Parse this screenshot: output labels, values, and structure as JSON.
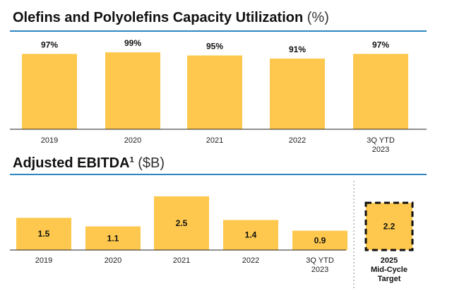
{
  "chart_data": [
    {
      "type": "bar",
      "title": "Olefins and Polyolefins Capacity Utilization",
      "unit_label": "(%)",
      "categories": [
        "2019",
        "2020",
        "2021",
        "2022",
        "3Q YTD 2023"
      ],
      "values": [
        97,
        99,
        95,
        91,
        97
      ],
      "value_labels": [
        "97%",
        "99%",
        "95%",
        "91%",
        "97%"
      ],
      "ylim": [
        0,
        100
      ],
      "colors": {
        "bar": "#FDC84D",
        "rule": "#2E86C1"
      }
    },
    {
      "type": "bar",
      "title": "Adjusted EBITDA",
      "title_superscript": "1",
      "unit_label": "($B)",
      "categories": [
        "2019",
        "2020",
        "2021",
        "2022",
        "3Q YTD 2023"
      ],
      "values": [
        1.5,
        1.1,
        2.5,
        1.4,
        0.9
      ],
      "value_labels": [
        "1.5",
        "1.1",
        "2.5",
        "1.4",
        "0.9"
      ],
      "target": {
        "label_lines": [
          "2025",
          "Mid-Cycle",
          "Target"
        ],
        "value": 2.2,
        "value_label": "2.2"
      },
      "ylim": [
        0,
        2.7
      ],
      "colors": {
        "bar": "#FDC84D",
        "rule": "#2E86C1"
      }
    }
  ]
}
